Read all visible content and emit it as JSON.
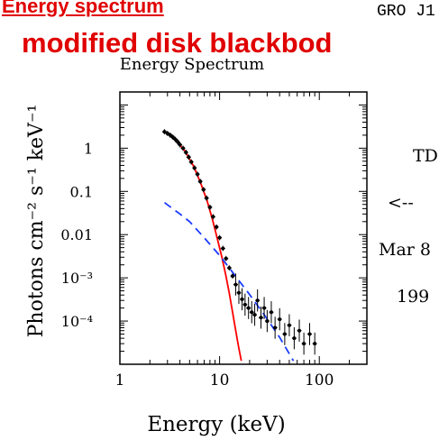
{
  "page": {
    "heading": "Energy spectrum",
    "subheading": "modified disk blackbod",
    "source_label": "GRO J1",
    "side_notes": [
      "TD",
      "<--",
      "Mar 8",
      "199"
    ]
  },
  "chart_data": {
    "type": "scatter",
    "title": "Energy Spectrum",
    "xlabel": "Energy (keV)",
    "ylabel": "Photons cm⁻² s⁻¹ keV⁻¹",
    "xscale": "log",
    "yscale": "log",
    "xlim": [
      1,
      300
    ],
    "ylim": [
      1e-05,
      20
    ],
    "x_ticks": [
      1,
      10,
      100
    ],
    "x_tick_labels": [
      "1",
      "10",
      "100"
    ],
    "y_ticks": [
      1,
      0.1,
      0.01,
      0.001,
      0.0001
    ],
    "y_tick_labels": [
      "1",
      "0.1",
      "0.01",
      "10⁻³",
      "10⁻⁴"
    ],
    "grid": false,
    "series": [
      {
        "color": "#000000",
        "points": [
          {
            "x": 2.8,
            "y": 2.4
          },
          {
            "x": 3.0,
            "y": 2.2
          },
          {
            "x": 3.2,
            "y": 2.0
          },
          {
            "x": 3.4,
            "y": 1.8
          },
          {
            "x": 3.6,
            "y": 1.6
          },
          {
            "x": 3.8,
            "y": 1.4
          },
          {
            "x": 4.0,
            "y": 1.2
          },
          {
            "x": 4.3,
            "y": 1.0
          },
          {
            "x": 4.6,
            "y": 0.8
          },
          {
            "x": 4.9,
            "y": 0.62
          },
          {
            "x": 5.2,
            "y": 0.48
          },
          {
            "x": 5.6,
            "y": 0.35
          },
          {
            "x": 6.0,
            "y": 0.25
          },
          {
            "x": 6.4,
            "y": 0.17
          },
          {
            "x": 6.9,
            "y": 0.11
          },
          {
            "x": 7.4,
            "y": 0.07
          },
          {
            "x": 8.0,
            "y": 0.043
          },
          {
            "x": 8.6,
            "y": 0.026
          },
          {
            "x": 9.3,
            "y": 0.015
          },
          {
            "x": 10.0,
            "y": 0.0085
          },
          {
            "x": 10.8,
            "y": 0.0048
          },
          {
            "x": 11.6,
            "y": 0.0028
          },
          {
            "x": 12.5,
            "y": 0.0017
          },
          {
            "x": 13.5,
            "y": 0.0011
          },
          {
            "x": 14.5,
            "y": 0.0007
          },
          {
            "x": 15.6,
            "y": 0.00045
          },
          {
            "x": 16.8,
            "y": 0.00032
          },
          {
            "x": 18.0,
            "y": 0.00024
          },
          {
            "x": 19.5,
            "y": 0.0002
          },
          {
            "x": 21.0,
            "y": 0.00016
          },
          {
            "x": 22.5,
            "y": 0.00014
          },
          {
            "x": 24.0,
            "y": 0.0003
          },
          {
            "x": 26.0,
            "y": 0.00012
          },
          {
            "x": 28.0,
            "y": 0.0002
          },
          {
            "x": 30.0,
            "y": 0.0001
          },
          {
            "x": 33.0,
            "y": 0.00016
          },
          {
            "x": 36.0,
            "y": 7e-05
          },
          {
            "x": 40.0,
            "y": 0.00011
          },
          {
            "x": 45.0,
            "y": 5e-05
          },
          {
            "x": 50.0,
            "y": 8e-05
          },
          {
            "x": 56.0,
            "y": 4e-05
          },
          {
            "x": 63.0,
            "y": 6e-05
          },
          {
            "x": 70.0,
            "y": 3e-05
          },
          {
            "x": 80.0,
            "y": 5e-05
          },
          {
            "x": 90.0,
            "y": 3e-05
          }
        ]
      },
      {
        "color": "#ff0000",
        "style": "solid",
        "points": [
          {
            "x": 2.8,
            "y": 2.4
          },
          {
            "x": 3.5,
            "y": 1.7
          },
          {
            "x": 4.5,
            "y": 0.85
          },
          {
            "x": 5.5,
            "y": 0.38
          },
          {
            "x": 6.5,
            "y": 0.15
          },
          {
            "x": 7.5,
            "y": 0.06
          },
          {
            "x": 8.5,
            "y": 0.022
          },
          {
            "x": 9.5,
            "y": 0.008
          },
          {
            "x": 10.5,
            "y": 0.0031
          },
          {
            "x": 11.5,
            "y": 0.0012
          },
          {
            "x": 12.5,
            "y": 0.00045
          },
          {
            "x": 13.5,
            "y": 0.00016
          },
          {
            "x": 14.5,
            "y": 6e-05
          },
          {
            "x": 15.5,
            "y": 2.5e-05
          },
          {
            "x": 16.5,
            "y": 1.2e-05
          }
        ]
      },
      {
        "color": "#1a3cff",
        "style": "dashed",
        "points": [
          {
            "x": 2.8,
            "y": 0.055
          },
          {
            "x": 4.0,
            "y": 0.03
          },
          {
            "x": 5.0,
            "y": 0.02
          },
          {
            "x": 7.0,
            "y": 0.0085
          },
          {
            "x": 10.0,
            "y": 0.0033
          },
          {
            "x": 14.0,
            "y": 0.0012
          },
          {
            "x": 20.0,
            "y": 0.00041
          },
          {
            "x": 28.0,
            "y": 0.00014
          },
          {
            "x": 40.0,
            "y": 4.2e-05
          },
          {
            "x": 55.0,
            "y": 1.2e-05
          }
        ]
      }
    ]
  }
}
